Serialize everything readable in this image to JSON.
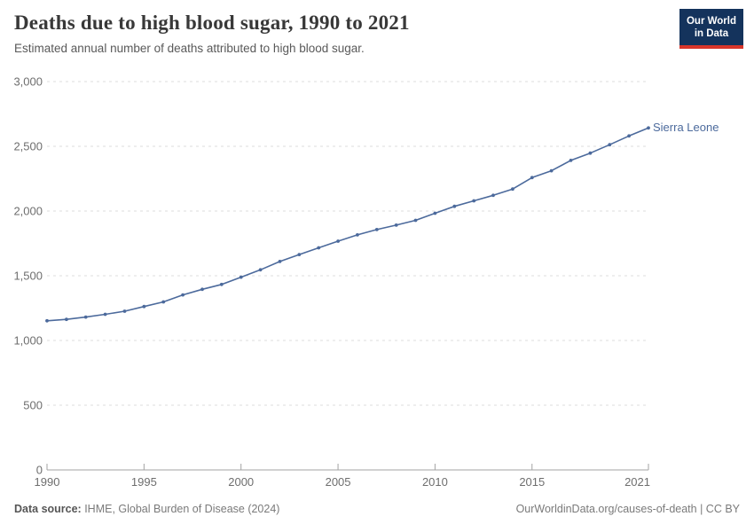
{
  "header": {
    "title": "Deaths due to high blood sugar, 1990 to 2021",
    "subtitle": "Estimated annual number of deaths attributed to high blood sugar.",
    "logo": {
      "line1": "Our World",
      "line2": "in Data",
      "bg_color": "#14335c",
      "accent_color": "#d8352a"
    }
  },
  "chart_data": {
    "type": "line",
    "title": "Deaths due to high blood sugar, 1990 to 2021",
    "subtitle": "Estimated annual number of deaths attributed to high blood sugar.",
    "x": [
      1990,
      1991,
      1992,
      1993,
      1994,
      1995,
      1996,
      1997,
      1998,
      1999,
      2000,
      2001,
      2002,
      2003,
      2004,
      2005,
      2006,
      2007,
      2008,
      2009,
      2010,
      2011,
      2012,
      2013,
      2014,
      2015,
      2016,
      2017,
      2018,
      2019,
      2020,
      2021
    ],
    "series": [
      {
        "name": "Sierra Leone",
        "color": "#4C6A9C",
        "values": [
          1152,
          1163,
          1181,
          1202,
          1226,
          1262,
          1298,
          1352,
          1395,
          1433,
          1489,
          1546,
          1610,
          1664,
          1716,
          1767,
          1816,
          1857,
          1891,
          1928,
          1983,
          2036,
          2079,
          2121,
          2170,
          2258,
          2311,
          2391,
          2447,
          2512,
          2580,
          2642
        ]
      }
    ],
    "xlim": [
      1990,
      2021
    ],
    "ylim": [
      0,
      3000
    ],
    "xlabel": "",
    "ylabel": "",
    "grid": "horizontal-dashed",
    "legend_position": "end-of-line",
    "yticks": [
      {
        "value": 0,
        "label": "0"
      },
      {
        "value": 500,
        "label": "500"
      },
      {
        "value": 1000,
        "label": "1,000"
      },
      {
        "value": 1500,
        "label": "1,500"
      },
      {
        "value": 2000,
        "label": "2,000"
      },
      {
        "value": 2500,
        "label": "2,500"
      },
      {
        "value": 3000,
        "label": "3,000"
      }
    ],
    "xticks": [
      {
        "value": 1990,
        "label": "1990"
      },
      {
        "value": 1995,
        "label": "1995"
      },
      {
        "value": 2000,
        "label": "2000"
      },
      {
        "value": 2005,
        "label": "2005"
      },
      {
        "value": 2010,
        "label": "2010"
      },
      {
        "value": 2015,
        "label": "2015"
      },
      {
        "value": 2021,
        "label": "2021"
      }
    ],
    "colors": {
      "gridline": "#dcdcdc",
      "axis_line": "#a3a3a3",
      "tick_label": "#6e6e6e"
    }
  },
  "footer": {
    "source_label": "Data source:",
    "source_text": " IHME, Global Burden of Disease (2024)",
    "credit": "OurWorldinData.org/causes-of-death | CC BY"
  }
}
